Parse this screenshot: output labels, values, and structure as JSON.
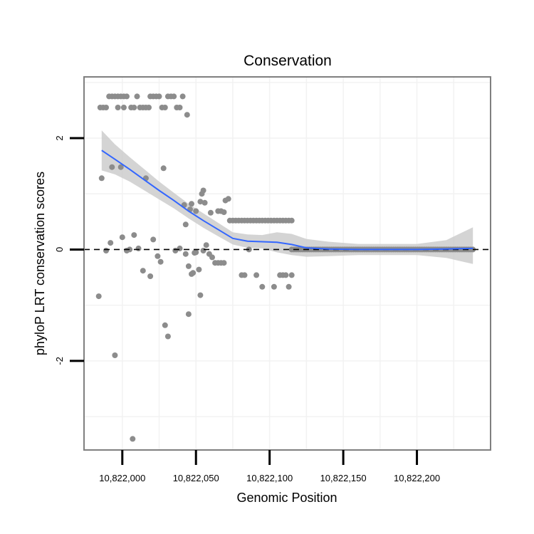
{
  "chart_data": {
    "type": "scatter",
    "title": "Conservation",
    "xlabel": "Genomic Position",
    "ylabel": "phyloP LRT conservation scores",
    "xlim": [
      10821974,
      10822250
    ],
    "ylim": [
      -3.6,
      3.1
    ],
    "x_ticks": [
      10822000,
      10822050,
      10822100,
      10822150,
      10822200
    ],
    "x_tick_labels": [
      "10,822,000",
      "10,822,050",
      "10,822,100",
      "10,822,150",
      "10,822,200"
    ],
    "y_ticks": [
      -2,
      0,
      2
    ],
    "y_tick_labels": [
      "-2",
      "0",
      "2"
    ],
    "reference_line": {
      "y": 0,
      "style": "dashed"
    },
    "colors": {
      "points": "#8c8c8c",
      "line": "#3366ff",
      "band": "#cccccc"
    },
    "points": [
      [
        10821985,
        2.55
      ],
      [
        10821987,
        2.55
      ],
      [
        10821989,
        2.55
      ],
      [
        10821991,
        2.75
      ],
      [
        10821993,
        2.75
      ],
      [
        10821995,
        2.75
      ],
      [
        10821997,
        2.75
      ],
      [
        10821999,
        2.75
      ],
      [
        10822001,
        2.75
      ],
      [
        10822003,
        2.75
      ],
      [
        10821997,
        2.55
      ],
      [
        10822001,
        2.55
      ],
      [
        10822006,
        2.55
      ],
      [
        10822008,
        2.55
      ],
      [
        10822010,
        2.75
      ],
      [
        10822012,
        2.55
      ],
      [
        10822014,
        2.55
      ],
      [
        10822016,
        2.55
      ],
      [
        10822018,
        2.55
      ],
      [
        10822019,
        2.75
      ],
      [
        10822021,
        2.75
      ],
      [
        10822023,
        2.75
      ],
      [
        10822025,
        2.75
      ],
      [
        10822027,
        2.55
      ],
      [
        10822029,
        2.55
      ],
      [
        10822031,
        2.75
      ],
      [
        10822033,
        2.75
      ],
      [
        10822035,
        2.75
      ],
      [
        10822037,
        2.55
      ],
      [
        10822039,
        2.55
      ],
      [
        10822041,
        2.75
      ],
      [
        10822044,
        2.42
      ],
      [
        10821986,
        1.28
      ],
      [
        10821993,
        1.48
      ],
      [
        10821999,
        1.48
      ],
      [
        10822016,
        1.28
      ],
      [
        10822028,
        1.46
      ],
      [
        10822042,
        0.8
      ],
      [
        10822046,
        0.72
      ],
      [
        10822047,
        0.82
      ],
      [
        10822050,
        0.69
      ],
      [
        10822053,
        0.86
      ],
      [
        10822054,
        1.0
      ],
      [
        10822055,
        1.06
      ],
      [
        10822056,
        0.84
      ],
      [
        10822060,
        0.66
      ],
      [
        10822065,
        0.69
      ],
      [
        10822067,
        0.69
      ],
      [
        10822069,
        0.67
      ],
      [
        10822070,
        0.88
      ],
      [
        10822072,
        0.91
      ],
      [
        10822043,
        0.45
      ],
      [
        10822073,
        0.52
      ],
      [
        10822075,
        0.52
      ],
      [
        10822077,
        0.52
      ],
      [
        10822079,
        0.52
      ],
      [
        10822081,
        0.52
      ],
      [
        10822083,
        0.52
      ],
      [
        10822085,
        0.52
      ],
      [
        10822087,
        0.52
      ],
      [
        10822089,
        0.52
      ],
      [
        10822091,
        0.52
      ],
      [
        10822093,
        0.52
      ],
      [
        10822095,
        0.52
      ],
      [
        10822097,
        0.52
      ],
      [
        10822099,
        0.52
      ],
      [
        10822101,
        0.52
      ],
      [
        10822103,
        0.52
      ],
      [
        10822105,
        0.52
      ],
      [
        10822107,
        0.52
      ],
      [
        10822109,
        0.52
      ],
      [
        10822111,
        0.52
      ],
      [
        10822113,
        0.52
      ],
      [
        10822115,
        0.52
      ],
      [
        10822000,
        0.22
      ],
      [
        10821992,
        0.12
      ],
      [
        10821989,
        -0.02
      ],
      [
        10822003,
        -0.02
      ],
      [
        10822005,
        0.0
      ],
      [
        10822008,
        0.26
      ],
      [
        10822011,
        0.02
      ],
      [
        10822014,
        -0.38
      ],
      [
        10822019,
        -0.48
      ],
      [
        10822021,
        0.18
      ],
      [
        10822024,
        -0.12
      ],
      [
        10822026,
        -0.22
      ],
      [
        10822029,
        -1.36
      ],
      [
        10822031,
        -1.56
      ],
      [
        10822036,
        -0.02
      ],
      [
        10822039,
        0.02
      ],
      [
        10822043,
        -0.08
      ],
      [
        10822045,
        -0.3
      ],
      [
        10822047,
        -0.44
      ],
      [
        10822048,
        -0.42
      ],
      [
        10822049,
        -0.06
      ],
      [
        10822050,
        -0.05
      ],
      [
        10822052,
        -0.36
      ],
      [
        10822053,
        -0.82
      ],
      [
        10822055,
        -0.02
      ],
      [
        10822057,
        0.08
      ],
      [
        10822059,
        -0.08
      ],
      [
        10822061,
        -0.14
      ],
      [
        10822063,
        -0.24
      ],
      [
        10822065,
        -0.24
      ],
      [
        10822067,
        -0.24
      ],
      [
        10822069,
        -0.24
      ],
      [
        10822045,
        -1.16
      ],
      [
        10821984,
        -0.84
      ],
      [
        10821995,
        -1.9
      ],
      [
        10822007,
        -3.4
      ],
      [
        10822081,
        -0.46
      ],
      [
        10822083,
        -0.46
      ],
      [
        10822086,
        0.0
      ],
      [
        10822091,
        -0.46
      ],
      [
        10822095,
        -0.67
      ],
      [
        10822103,
        -0.67
      ],
      [
        10822107,
        -0.46
      ],
      [
        10822109,
        -0.46
      ],
      [
        10822111,
        -0.46
      ],
      [
        10822115,
        -0.46
      ],
      [
        10822113,
        -0.67
      ]
    ],
    "zero_run": {
      "x_start": 10822115,
      "x_end": 10822238,
      "step": 1.5,
      "y": 0
    },
    "trend": {
      "x": [
        10821986,
        10821995,
        10822005,
        10822015,
        10822025,
        10822035,
        10822045,
        10822055,
        10822065,
        10822075,
        10822085,
        10822095,
        10822105,
        10822115,
        10822125,
        10822140,
        10822160,
        10822180,
        10822200,
        10822220,
        10822238
      ],
      "y": [
        1.78,
        1.62,
        1.44,
        1.25,
        1.06,
        0.88,
        0.69,
        0.52,
        0.36,
        0.2,
        0.15,
        0.14,
        0.13,
        0.09,
        0.03,
        0.01,
        0.0,
        0.0,
        0.0,
        0.01,
        0.02
      ],
      "lo": [
        1.42,
        1.35,
        1.22,
        1.06,
        0.9,
        0.74,
        0.56,
        0.39,
        0.24,
        0.09,
        0.03,
        0.02,
        -0.05,
        -0.1,
        -0.13,
        -0.12,
        -0.1,
        -0.1,
        -0.1,
        -0.15,
        -0.26
      ],
      "hi": [
        2.14,
        1.89,
        1.66,
        1.44,
        1.22,
        1.02,
        0.82,
        0.65,
        0.48,
        0.31,
        0.27,
        0.26,
        0.31,
        0.28,
        0.19,
        0.14,
        0.1,
        0.1,
        0.1,
        0.17,
        0.4
      ]
    }
  }
}
